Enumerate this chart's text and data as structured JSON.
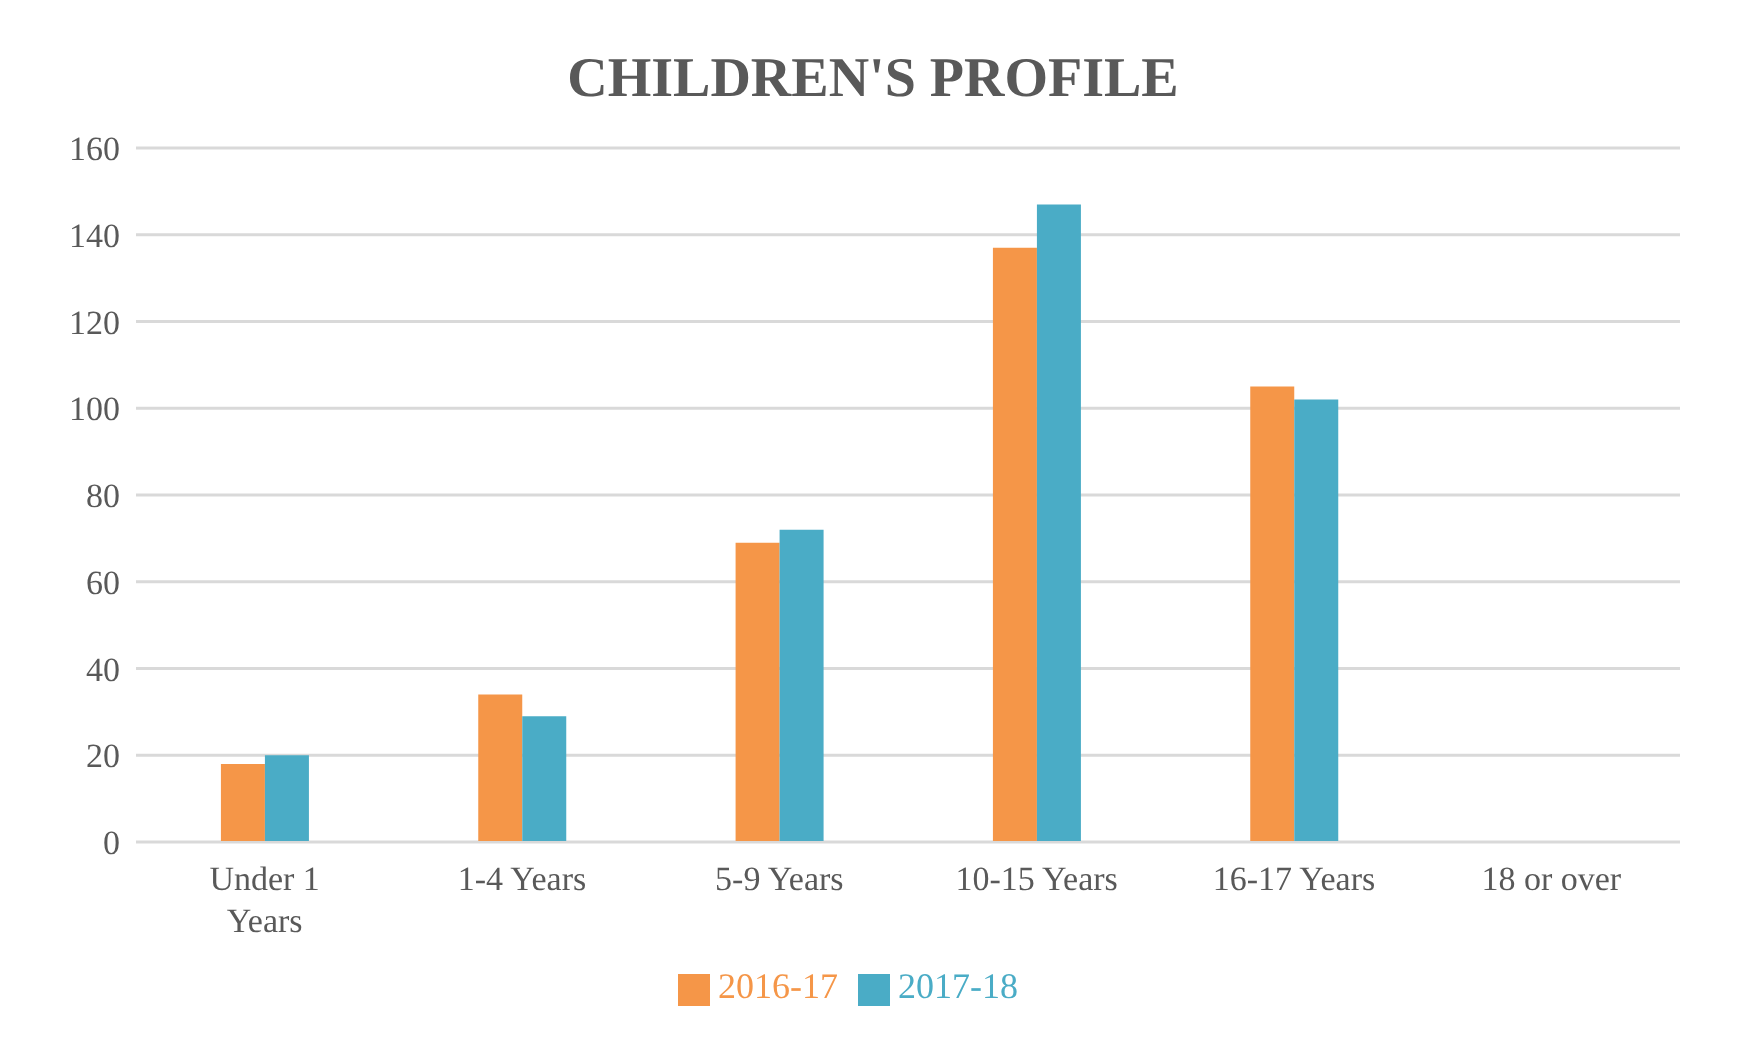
{
  "chart_data": {
    "type": "bar",
    "title": "CHILDREN'S PROFILE",
    "categories": [
      "Under 1 Years",
      "1-4 Years",
      "5-9 Years",
      "10-15 Years",
      "16-17 Years",
      "18 or over"
    ],
    "series": [
      {
        "name": "2016-17",
        "color": "#f59648",
        "values": [
          18,
          34,
          69,
          137,
          105,
          null
        ]
      },
      {
        "name": "2017-18",
        "color": "#4aacc6",
        "values": [
          20,
          29,
          72,
          147,
          102,
          null
        ]
      }
    ],
    "ylim": [
      0,
      160
    ],
    "yticks": [
      0,
      20,
      40,
      60,
      80,
      100,
      120,
      140,
      160
    ],
    "grid": "y",
    "legend": "bottom"
  }
}
